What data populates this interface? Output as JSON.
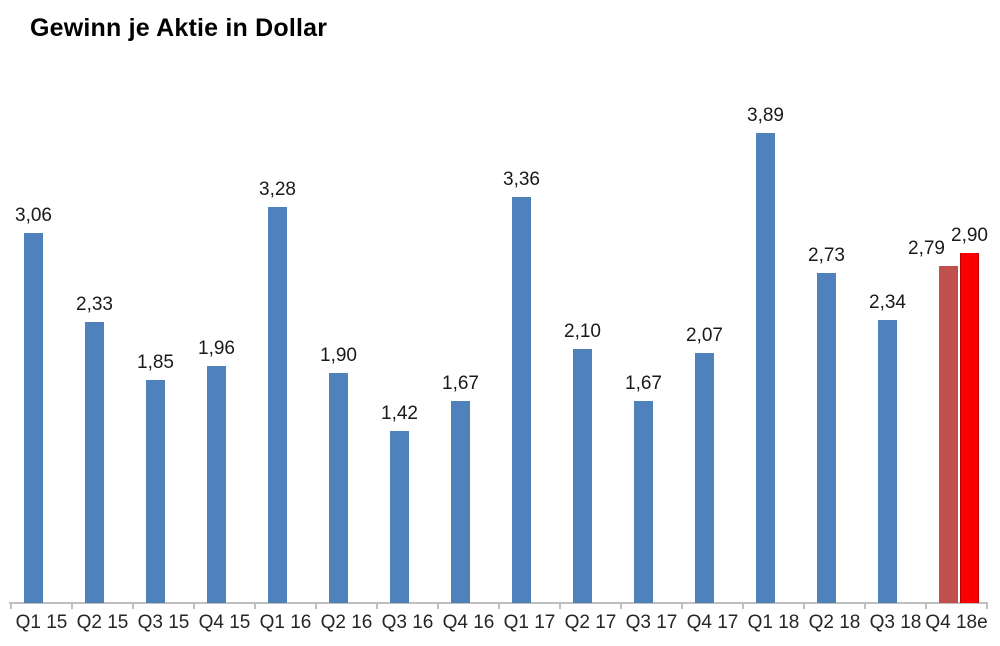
{
  "chart_data": {
    "type": "bar",
    "title": "Gewinn je Aktie in Dollar",
    "xlabel": "",
    "ylabel": "",
    "ylim": [
      0,
      4.2
    ],
    "grid": false,
    "legend": "none",
    "y_axis_visible": false,
    "value_label_format": "decimal-comma",
    "categories": [
      "Q1 15",
      "Q2 15",
      "Q3 15",
      "Q4 15",
      "Q1 16",
      "Q2 16",
      "Q3 16",
      "Q4 16",
      "Q1 17",
      "Q2 17",
      "Q3 17",
      "Q4 17",
      "Q1 18",
      "Q2 18",
      "Q3 18",
      "Q4 18e"
    ],
    "bars": [
      {
        "category": "Q1 15",
        "value": 3.06,
        "label": "3,06",
        "color_key": "actual"
      },
      {
        "category": "Q2 15",
        "value": 2.33,
        "label": "2,33",
        "color_key": "actual"
      },
      {
        "category": "Q3 15",
        "value": 1.85,
        "label": "1,85",
        "color_key": "actual"
      },
      {
        "category": "Q4 15",
        "value": 1.96,
        "label": "1,96",
        "color_key": "actual"
      },
      {
        "category": "Q1 16",
        "value": 3.28,
        "label": "3,28",
        "color_key": "actual"
      },
      {
        "category": "Q2 16",
        "value": 1.9,
        "label": "1,90",
        "color_key": "actual"
      },
      {
        "category": "Q3 16",
        "value": 1.42,
        "label": "1,42",
        "color_key": "actual"
      },
      {
        "category": "Q4 16",
        "value": 1.67,
        "label": "1,67",
        "color_key": "actual"
      },
      {
        "category": "Q1 17",
        "value": 3.36,
        "label": "3,36",
        "color_key": "actual"
      },
      {
        "category": "Q2 17",
        "value": 2.1,
        "label": "2,10",
        "color_key": "actual"
      },
      {
        "category": "Q3 17",
        "value": 1.67,
        "label": "1,67",
        "color_key": "actual"
      },
      {
        "category": "Q4 17",
        "value": 2.07,
        "label": "2,07",
        "color_key": "actual"
      },
      {
        "category": "Q1 18",
        "value": 3.89,
        "label": "3,89",
        "color_key": "actual"
      },
      {
        "category": "Q2 18",
        "value": 2.73,
        "label": "2,73",
        "color_key": "actual"
      },
      {
        "category": "Q3 18",
        "value": 2.34,
        "label": "2,34",
        "color_key": "actual"
      },
      {
        "category": "Q4 18e",
        "value": 2.79,
        "label": "2,79",
        "color_key": "estimate_low",
        "slot": 0,
        "label_dx": -22
      },
      {
        "category": "Q4 18e",
        "value": 2.9,
        "label": "2,90",
        "color_key": "estimate_high",
        "slot": 1
      }
    ],
    "colors": {
      "actual": "#4F81BD",
      "estimate_low": "#C0504D",
      "estimate_high": "#FA0000",
      "estimate_high_edge": "#C00000",
      "axis": "#BFBFBF",
      "value_text": "#1A1A1A",
      "axis_text": "#262626",
      "title_text": "#000000"
    }
  }
}
